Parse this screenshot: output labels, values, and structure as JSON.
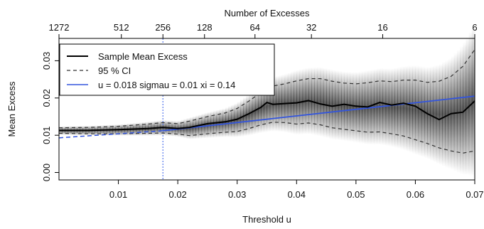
{
  "chart_data": {
    "type": "line",
    "title": "",
    "xlabel": "Threshold u",
    "ylabel": "Mean Excess",
    "top_axis_label": "Number of Excesses",
    "xlim": [
      0.0,
      0.07
    ],
    "ylim": [
      -0.002,
      0.036
    ],
    "x_ticks": [
      0.01,
      0.02,
      0.03,
      0.04,
      0.05,
      0.06,
      0.07
    ],
    "x_tick_labels": [
      "0.01",
      "0.02",
      "0.03",
      "0.04",
      "0.05",
      "0.06",
      "0.07"
    ],
    "y_ticks": [
      0.0,
      0.01,
      0.02,
      0.03
    ],
    "y_tick_labels": [
      "0.00",
      "0.01",
      "0.02",
      "0.03"
    ],
    "top_ticks": [
      {
        "label": "1272",
        "x": 0.0
      },
      {
        "label": "512",
        "x": 0.0105
      },
      {
        "label": "256",
        "x": 0.0175
      },
      {
        "label": "128",
        "x": 0.0245
      },
      {
        "label": "64",
        "x": 0.033
      },
      {
        "label": "32",
        "x": 0.0425
      },
      {
        "label": "16",
        "x": 0.0545
      },
      {
        "label": "6",
        "x": 0.07
      }
    ],
    "threshold_marker": 0.0175,
    "series": [
      {
        "name": "Sample Mean Excess",
        "style": "solid",
        "color": "#000000",
        "x": [
          0.0,
          0.005,
          0.01,
          0.015,
          0.0175,
          0.02,
          0.022,
          0.025,
          0.028,
          0.03,
          0.032,
          0.034,
          0.035,
          0.036,
          0.038,
          0.04,
          0.042,
          0.044,
          0.046,
          0.048,
          0.05,
          0.052,
          0.054,
          0.056,
          0.058,
          0.06,
          0.062,
          0.064,
          0.066,
          0.068,
          0.07
        ],
        "y": [
          0.0113,
          0.0113,
          0.0115,
          0.0118,
          0.0121,
          0.0118,
          0.0121,
          0.0131,
          0.0136,
          0.0143,
          0.0158,
          0.0175,
          0.0188,
          0.0183,
          0.0185,
          0.0187,
          0.0193,
          0.0184,
          0.0178,
          0.0183,
          0.0178,
          0.0176,
          0.0188,
          0.0181,
          0.0186,
          0.0178,
          0.0158,
          0.0142,
          0.0158,
          0.0162,
          0.0192
        ]
      },
      {
        "name": "95 % CI",
        "style": "dashed",
        "color": "#333333",
        "x": [
          0.0,
          0.005,
          0.01,
          0.015,
          0.0175,
          0.02,
          0.022,
          0.025,
          0.028,
          0.03,
          0.032,
          0.034,
          0.036,
          0.038,
          0.04,
          0.042,
          0.044,
          0.046,
          0.048,
          0.05,
          0.052,
          0.054,
          0.056,
          0.058,
          0.06,
          0.062,
          0.064,
          0.066,
          0.068,
          0.07
        ],
        "upper": [
          0.012,
          0.0121,
          0.0124,
          0.013,
          0.0134,
          0.0131,
          0.0138,
          0.015,
          0.016,
          0.0172,
          0.0192,
          0.0215,
          0.0232,
          0.0238,
          0.0246,
          0.0252,
          0.0252,
          0.0245,
          0.024,
          0.0238,
          0.0241,
          0.0246,
          0.0244,
          0.0248,
          0.0248,
          0.0242,
          0.0245,
          0.0258,
          0.0285,
          0.033
        ],
        "lower": [
          0.0105,
          0.0104,
          0.0104,
          0.0105,
          0.0106,
          0.0103,
          0.0099,
          0.0104,
          0.0108,
          0.011,
          0.0118,
          0.0128,
          0.0135,
          0.0134,
          0.013,
          0.0133,
          0.0128,
          0.012,
          0.0116,
          0.0112,
          0.0108,
          0.0109,
          0.0104,
          0.0098,
          0.0088,
          0.0078,
          0.0066,
          0.0058,
          0.0052,
          0.0058
        ]
      },
      {
        "name": "u = 0.018 sigmau = 0.01 xi = 0.14",
        "style": "solid",
        "color": "#3355dd",
        "x": [
          0.0175,
          0.07
        ],
        "y": [
          0.0112,
          0.0205
        ],
        "extension": {
          "style": "dashed",
          "x": [
            0.0,
            0.0175
          ],
          "y": [
            0.0093,
            0.0112
          ]
        }
      }
    ],
    "legend_position": "top-left",
    "grid": false
  }
}
